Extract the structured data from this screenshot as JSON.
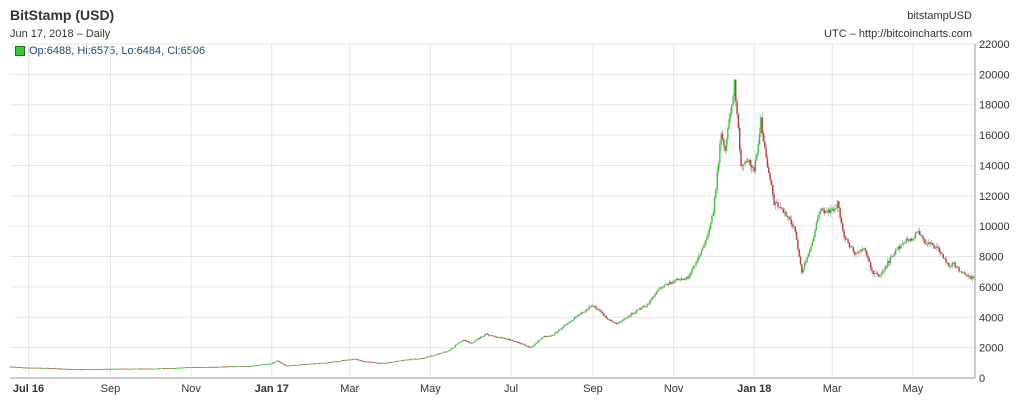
{
  "header": {
    "title": "BitStamp (USD)",
    "subtitle": "Jun 17, 2018 – Daily",
    "symbol": "bitstampUSD",
    "source": "UTC – http://bitcoincharts.com"
  },
  "legend": {
    "text": "Op:6488, Hi:6575, Lo:6484, Cl:6506",
    "color": "#33cc33"
  },
  "colors": {
    "up": "#33cc33",
    "down": "#cc3333",
    "wick": "#999999",
    "grid": "#e6e6e6",
    "axis": "#999999"
  },
  "chart_data": {
    "type": "candlestick",
    "title": "BitStamp (USD)",
    "y_ticks": [
      0,
      2000,
      4000,
      6000,
      8000,
      10000,
      12000,
      14000,
      16000,
      18000,
      20000,
      22000
    ],
    "ylim": [
      0,
      22000
    ],
    "x_ticks": [
      {
        "label": "Jul 16",
        "date": "2016-07-01",
        "bold": true
      },
      {
        "label": "Sep",
        "date": "2016-09-01",
        "bold": false
      },
      {
        "label": "Nov",
        "date": "2016-11-01",
        "bold": false
      },
      {
        "label": "Jan 17",
        "date": "2017-01-01",
        "bold": true
      },
      {
        "label": "Mar",
        "date": "2017-03-01",
        "bold": false
      },
      {
        "label": "May",
        "date": "2017-05-01",
        "bold": false
      },
      {
        "label": "Jul",
        "date": "2017-07-01",
        "bold": false
      },
      {
        "label": "Sep",
        "date": "2017-09-01",
        "bold": false
      },
      {
        "label": "Nov",
        "date": "2017-11-01",
        "bold": false
      },
      {
        "label": "Jan 18",
        "date": "2018-01-01",
        "bold": true
      },
      {
        "label": "Mar",
        "date": "2018-03-01",
        "bold": false
      },
      {
        "label": "May",
        "date": "2018-05-01",
        "bold": false
      }
    ],
    "x_range": [
      "2016-06-17",
      "2018-06-17"
    ],
    "close_series": {
      "dates": [
        "2016-06-17",
        "2016-07-01",
        "2016-07-15",
        "2016-08-01",
        "2016-08-15",
        "2016-09-01",
        "2016-09-15",
        "2016-10-01",
        "2016-10-15",
        "2016-11-01",
        "2016-11-15",
        "2016-12-01",
        "2016-12-15",
        "2017-01-01",
        "2017-01-05",
        "2017-01-12",
        "2017-01-25",
        "2017-02-10",
        "2017-02-25",
        "2017-03-05",
        "2017-03-12",
        "2017-03-25",
        "2017-04-10",
        "2017-04-25",
        "2017-05-05",
        "2017-05-15",
        "2017-05-25",
        "2017-06-01",
        "2017-06-12",
        "2017-06-20",
        "2017-07-01",
        "2017-07-16",
        "2017-07-25",
        "2017-08-01",
        "2017-08-10",
        "2017-08-20",
        "2017-09-01",
        "2017-09-15",
        "2017-09-20",
        "2017-10-01",
        "2017-10-12",
        "2017-10-20",
        "2017-11-01",
        "2017-11-12",
        "2017-11-20",
        "2017-11-28",
        "2017-12-01",
        "2017-12-07",
        "2017-12-10",
        "2017-12-17",
        "2017-12-22",
        "2017-12-28",
        "2018-01-01",
        "2018-01-06",
        "2018-01-10",
        "2018-01-16",
        "2018-01-22",
        "2018-01-31",
        "2018-02-06",
        "2018-02-12",
        "2018-02-20",
        "2018-03-01",
        "2018-03-05",
        "2018-03-10",
        "2018-03-18",
        "2018-03-25",
        "2018-04-01",
        "2018-04-06",
        "2018-04-15",
        "2018-04-24",
        "2018-05-01",
        "2018-05-05",
        "2018-05-10",
        "2018-05-20",
        "2018-05-28",
        "2018-06-01",
        "2018-06-10",
        "2018-06-17"
      ],
      "close": [
        750,
        670,
        660,
        580,
        580,
        600,
        610,
        610,
        640,
        720,
        720,
        760,
        780,
        960,
        1150,
        800,
        910,
        990,
        1180,
        1250,
        1100,
        960,
        1180,
        1300,
        1550,
        1800,
        2500,
        2300,
        2900,
        2700,
        2500,
        2000,
        2700,
        2800,
        3400,
        4100,
        4800,
        3700,
        3600,
        4300,
        4800,
        5800,
        6400,
        6600,
        8000,
        9800,
        10900,
        16000,
        15000,
        19500,
        14000,
        14500,
        13500,
        17000,
        14500,
        11500,
        11200,
        10000,
        7000,
        8500,
        11000,
        11000,
        11500,
        9300,
        8200,
        8500,
        6900,
        6700,
        8000,
        9000,
        9200,
        9700,
        9000,
        8500,
        7400,
        7500,
        6700,
        6506
      ]
    },
    "last_candle": {
      "open": 6488,
      "high": 6575,
      "low": 6484,
      "close": 6506
    }
  }
}
